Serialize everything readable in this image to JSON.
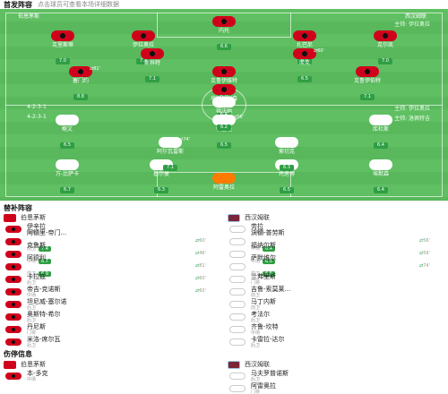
{
  "header": {
    "title": "首发阵容",
    "subtitle": "点击球员可查看本场详细数据"
  },
  "pitch": {
    "home_label": "伯恩茅斯",
    "away_label": "西汉姆联",
    "away_formation_lbl": "4-2-3-1",
    "home_formation": "4-2-3-1",
    "home_formation_lbl": "4-2-3-1",
    "home_coach": "主帅: 伊拉奥拉",
    "away_coach": "主帅: 洛佩特吉",
    "home_players": [
      {
        "name": "内托",
        "rating": "6.6",
        "event": ""
      },
      {
        "name": "克里斯蒂",
        "rating": "7.0",
        "event": ""
      },
      {
        "name": "伊拉奥拉",
        "rating": "7.7",
        "event": ""
      },
      {
        "name": "扎巴尼",
        "rating": "6.9",
        "event": ""
      },
      {
        "name": "克尔凯",
        "rating": "7.0",
        "event": ""
      },
      {
        "name": "斯科特",
        "rating": "7.1",
        "event": ""
      },
      {
        "name": "库克",
        "rating": "6.5",
        "event": "60'"
      },
      {
        "name": "塞门约",
        "rating": "8.8",
        "event": "81'"
      },
      {
        "name": "克鲁伊维特",
        "rating": "6.9",
        "event": ""
      },
      {
        "name": "克鲁伊伯特",
        "rating": "7.1",
        "event": ""
      },
      {
        "name": "埃瓦尼尔森",
        "rating": "6.4",
        "event": ""
      }
    ],
    "away_players": [
      {
        "name": "阿雷奥拉",
        "rating": "6.6",
        "event": ""
      },
      {
        "name": "万-比萨卡",
        "rating": "6.7",
        "event": ""
      },
      {
        "name": "基尔曼",
        "rating": "6.3",
        "event": ""
      },
      {
        "name": "托迪博",
        "rating": "6.5",
        "event": ""
      },
      {
        "name": "埃默森",
        "rating": "6.4",
        "event": ""
      },
      {
        "name": "阿尔瓦雷斯",
        "rating": "7.1",
        "event": "74'"
      },
      {
        "name": "索切克",
        "rating": "6.3",
        "event": ""
      },
      {
        "name": "鲍文",
        "rating": "6.5",
        "event": ""
      },
      {
        "name": "帕奎塔",
        "rating": "6.5",
        "event": "56'"
      },
      {
        "name": "库杜斯",
        "rating": "6.4",
        "event": ""
      },
      {
        "name": "福法纳",
        "rating": "6.2",
        "event": ""
      }
    ]
  },
  "subs": {
    "title": "替补阵容",
    "home_team": "伯恩茅斯",
    "away_team": "西汉姆联",
    "home": [
      {
        "name": "伊辛拉",
        "pos": "主教练",
        "rating": "",
        "time": ""
      },
      {
        "name": "阿德里-帝门...",
        "pos": "前卫",
        "rating": "7.4",
        "time": "60'"
      },
      {
        "name": "克鲁斯",
        "pos": "中场",
        "rating": "6.7",
        "time": "46'"
      },
      {
        "name": "阿德利",
        "pos": "前卫",
        "rating": "6.9",
        "time": "81'"
      },
      {
        "name": "卡拉兹",
        "pos": "后卫",
        "rating": "",
        "time": "60'"
      },
      {
        "name": "帝吉-克诺斯",
        "pos": "中场",
        "rating": "",
        "time": "60'"
      },
      {
        "name": "坦尼威-塞尔诺",
        "pos": "后卫",
        "rating": "",
        "time": ""
      },
      {
        "name": "奥斯特-希尔",
        "pos": "后卫",
        "rating": "",
        "time": ""
      },
      {
        "name": "丹尼斯",
        "pos": "门将",
        "rating": "",
        "time": ""
      },
      {
        "name": "米洛-席尔瓦",
        "pos": "后卫",
        "rating": "",
        "time": ""
      }
    ],
    "away": [
      {
        "name": "劳拉",
        "pos": "主教练",
        "rating": "",
        "time": ""
      },
      {
        "name": "沃德-普劳斯",
        "pos": "中场",
        "rating": "6.4",
        "time": "56'"
      },
      {
        "name": "福纳尔斯",
        "pos": "中场",
        "rating": "6.5",
        "time": "56'"
      },
      {
        "name": "萨默维尔",
        "pos": "前卫",
        "rating": "6.5",
        "time": "74'"
      },
      {
        "name": "兰弗里斯",
        "pos": "门将",
        "rating": "",
        "time": ""
      },
      {
        "name": "吉鲁-索莫莱...",
        "pos": "前卫",
        "rating": "",
        "time": ""
      },
      {
        "name": "马丁内斯",
        "pos": "前卫",
        "rating": "",
        "time": ""
      },
      {
        "name": "考法尔",
        "pos": "后卫",
        "rating": "",
        "time": ""
      },
      {
        "name": "齐鲁-坎特",
        "pos": "中场",
        "rating": "",
        "time": ""
      },
      {
        "name": "卡雷拉-达尔",
        "pos": "后卫",
        "rating": "",
        "time": ""
      }
    ]
  },
  "injuries": {
    "title": "伤停信息",
    "home_team": "伯恩茅斯",
    "away_team": "西汉姆联",
    "home": [
      {
        "name": "本-多克",
        "pos": "中场"
      }
    ],
    "away": [
      {
        "name": "马夫罗普诺斯",
        "pos": "后卫"
      },
      {
        "name": "阿雷奥拉",
        "pos": "门将"
      }
    ]
  }
}
